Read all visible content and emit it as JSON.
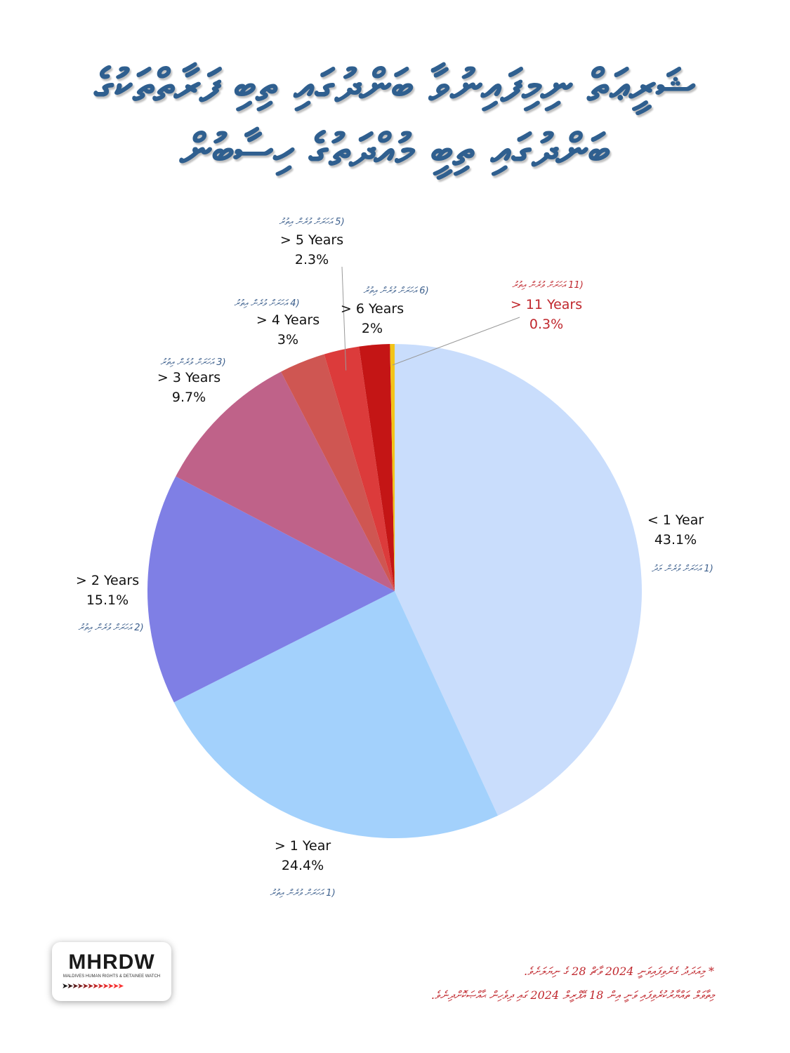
{
  "title": {
    "line1": "ޝަރީޢަތް ނިމިފައިނުވާ ބަންދުގައި ތިބި ފަރާތްތަކުގެ",
    "line2": "ބަންދުގައި ތިބީ މުއްދަތުގެ ހިސާބުން"
  },
  "chart_data": {
    "type": "pie",
    "slices": [
      {
        "label": "< 1 Year",
        "value": 43.1,
        "value_text": "43.1%",
        "dhivehi": "(1 އަހަރަށް ވުރެން މަދު",
        "color": "#c9ddfc"
      },
      {
        "label": "> 1 Year",
        "value": 24.4,
        "value_text": "24.4%",
        "dhivehi": "(1 އަހަރަށް ވުރެން އިތުރު",
        "color": "#a3d1fc"
      },
      {
        "label": "> 2 Years",
        "value": 15.1,
        "value_text": "15.1%",
        "dhivehi": "(2 އަހަރަށް ވުރެން އިތުރު",
        "color": "#7f7fe5"
      },
      {
        "label": "> 3 Years",
        "value": 9.7,
        "value_text": "9.7%",
        "dhivehi": "(3 އަހަރަށް ވުރެން އިތުރު",
        "color": "#bf6289"
      },
      {
        "label": "> 4 Years",
        "value": 3,
        "value_text": "3%",
        "dhivehi": "(4 އަހަރަށް ވުރެން އިތުރު",
        "color": "#cf5652"
      },
      {
        "label": "> 5 Years",
        "value": 2.3,
        "value_text": "2.3%",
        "dhivehi": "(5 އަހަރަށް ވުރެން އިތުރު",
        "color": "#dc3b3b"
      },
      {
        "label": "> 6 Years",
        "value": 2,
        "value_text": "2%",
        "dhivehi": "(6 އަހަރަށް ވުރެން އިތުރު",
        "color": "#c41515"
      },
      {
        "label": "> 11 Years",
        "value": 0.3,
        "value_text": "0.3%",
        "dhivehi": "(11 އަހަރަށް ވުރެން އިތުރު",
        "color": "#f2c418"
      }
    ],
    "legend": "none"
  },
  "logo": {
    "text": "MHRDW",
    "subtitle": "MALDIVES HUMAN RIGHTS & DETAINEE WATCH",
    "arrows": "➤➤➤➤➤➤➤➤➤➤➤➤",
    "arrow_colors": [
      "#1a1a1a",
      "#3a1a1a",
      "#5a1c1c",
      "#7a1e1e",
      "#8f2020",
      "#a82222",
      "#bf2424",
      "#d42626",
      "#e62929",
      "#f02c2c",
      "#f53030",
      "#fa3535"
    ]
  },
  "footnotes": [
    "* މިއަދަދު ގެނެވިފައިވަނީ 2024 ވާޗް 28 ގެ ނިޔަލަށެވެ.",
    "މިތާވަލް ތައްޔާރުކުރެވިފައި ވަނީ އިން 18 އޭޕްރީލް 2024 ގައި ދިވެހިން ޙާއްޞަކޮށްދިނެވެ."
  ]
}
